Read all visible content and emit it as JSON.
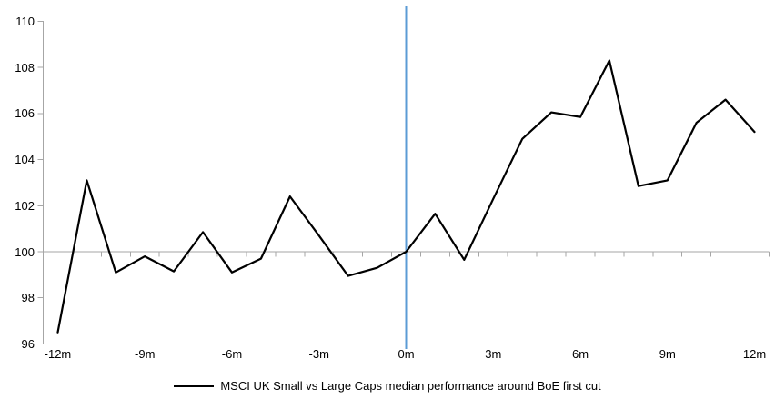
{
  "chart_data": {
    "type": "line",
    "title": "",
    "x_axis_label": "",
    "y_axis_label": "",
    "x": [
      -12,
      -11,
      -10,
      -9,
      -8,
      -7,
      -6,
      -5,
      -4,
      -3,
      -2,
      -1,
      0,
      1,
      2,
      3,
      4,
      5,
      6,
      7,
      8,
      9,
      10,
      11,
      12
    ],
    "series": [
      {
        "name": "MSCI UK Small vs Large Caps median performance around BoE first cut",
        "color": "#000000",
        "values": [
          96.5,
          103.1,
          99.1,
          99.8,
          99.15,
          100.85,
          99.1,
          99.7,
          102.4,
          100.7,
          98.95,
          99.3,
          100.0,
          101.65,
          99.65,
          102.3,
          104.9,
          106.05,
          105.85,
          108.3,
          102.85,
          103.1,
          105.6,
          106.6,
          105.2
        ]
      }
    ],
    "x_ticks": [
      {
        "m": -12,
        "label": "-12m"
      },
      {
        "m": -9,
        "label": "-9m"
      },
      {
        "m": -6,
        "label": "-6m"
      },
      {
        "m": -3,
        "label": "-3m"
      },
      {
        "m": 0,
        "label": "0m"
      },
      {
        "m": 3,
        "label": "3m"
      },
      {
        "m": 6,
        "label": "6m"
      },
      {
        "m": 9,
        "label": "9m"
      },
      {
        "m": 12,
        "label": "12m"
      }
    ],
    "y_ticks": [
      96,
      98,
      100,
      102,
      104,
      106,
      108,
      110
    ],
    "ylim": [
      96,
      110
    ],
    "axis_crosses_at_y": 100,
    "event_line_x": 0,
    "grid": false,
    "legend_position": "bottom",
    "colors": {
      "axis": "#a6a6a6",
      "baseline": "#a6a6a6",
      "event_line": "#5b9bd5",
      "series": "#000000",
      "text": "#000000",
      "background": "#ffffff"
    }
  },
  "legend": {
    "label": "MSCI UK Small vs Large Caps median performance around BoE first cut"
  }
}
